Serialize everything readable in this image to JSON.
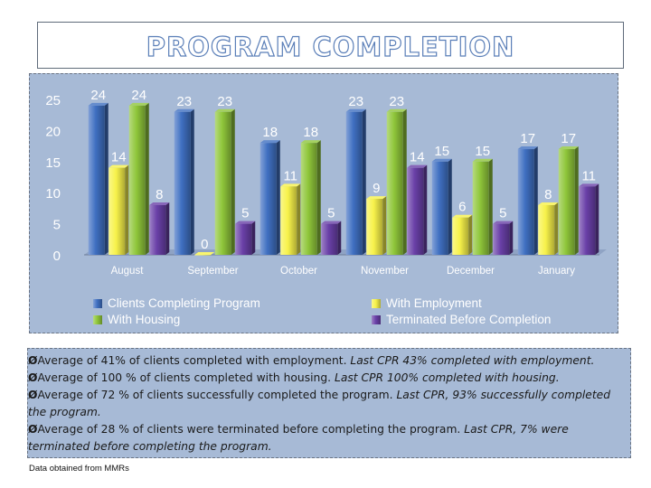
{
  "title": "PROGRAM COMPLETION",
  "chart_data": {
    "type": "bar",
    "categories": [
      "August",
      "September",
      "October",
      "November",
      "December",
      "January"
    ],
    "series": [
      {
        "name": "Clients Completing Program",
        "color": "#3f6fc1",
        "values": [
          24,
          23,
          18,
          23,
          15,
          17
        ]
      },
      {
        "name": "With Employment",
        "color": "#f7f24a",
        "values": [
          14,
          0,
          11,
          9,
          6,
          8
        ]
      },
      {
        "name": "With Housing",
        "color": "#8fc63a",
        "values": [
          24,
          23,
          18,
          23,
          15,
          17
        ]
      },
      {
        "name": "Terminated Before Completion",
        "color": "#6a40a8",
        "values": [
          8,
          5,
          5,
          14,
          5,
          11
        ]
      }
    ],
    "y_ticks": [
      "0",
      "5",
      "10",
      "15",
      "20",
      "25"
    ],
    "ylim": [
      0,
      25
    ],
    "legend_placement": "bottom",
    "grid": false
  },
  "notes": [
    {
      "marker": "Ø",
      "text": "Average of 41% of clients completed with employment. ",
      "last": "Last CPR 43% completed with employment."
    },
    {
      "marker": "Ø",
      "text": "Average of 100 % of clients completed with housing. ",
      "last": "Last CPR 100% completed with housing."
    },
    {
      "marker": "Ø",
      "text": "Average of 72 % of clients successfully completed the program. ",
      "last": "Last CPR, 93% successfully completed the program."
    },
    {
      "marker": "Ø",
      "text": "Average of 28 % of clients were terminated before completing the program. ",
      "last": "Last CPR, 7% were terminated before completing the program."
    }
  ],
  "source": "Data obtained from MMRs"
}
